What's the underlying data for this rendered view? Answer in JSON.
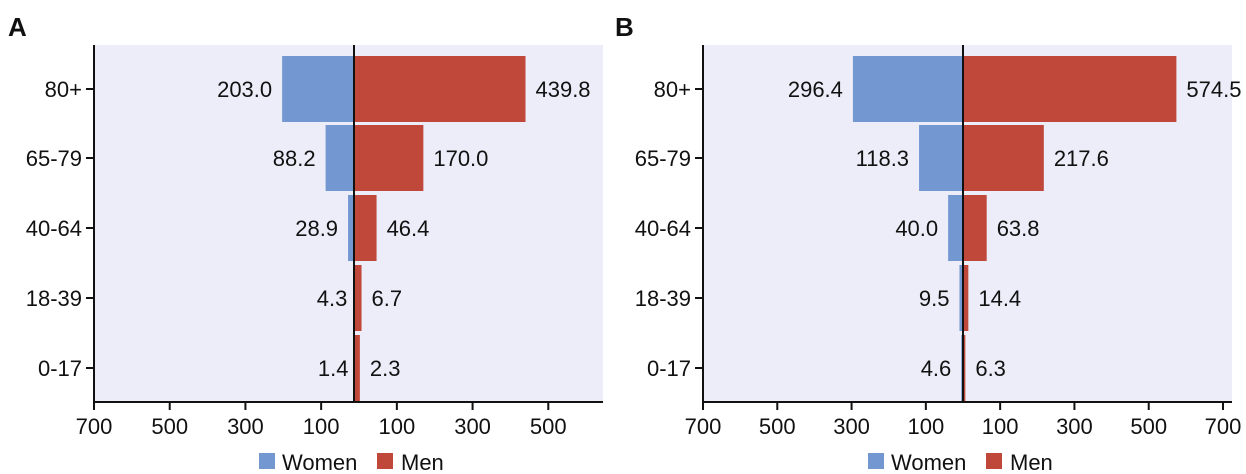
{
  "colors": {
    "women": "#7297d1",
    "men": "#c0483a",
    "panel_bg": "#ecedf8",
    "axis": "#111111"
  },
  "legend": {
    "women_label": "Women",
    "men_label": "Men"
  },
  "chart_data": [
    {
      "type": "bar",
      "panel": "A",
      "orientation": "horizontal-population-pyramid",
      "categories": [
        "80+",
        "65-79",
        "40-64",
        "18-39",
        "0-17"
      ],
      "series": [
        {
          "name": "Women",
          "values": [
            203.0,
            88.2,
            28.9,
            4.3,
            1.4
          ],
          "labels": [
            "203.0",
            "88.2",
            "28.9",
            "4.3",
            "1.4"
          ]
        },
        {
          "name": "Men",
          "values": [
            439.8,
            170.0,
            46.4,
            6.7,
            2.3
          ],
          "labels": [
            "439.8",
            "170.0",
            "46.4",
            "6.7",
            "2.3"
          ]
        }
      ],
      "xlim": [
        -700,
        700
      ],
      "ticks": [
        "700",
        "500",
        "300",
        "100",
        "100",
        "300",
        "500"
      ],
      "tick_values": [
        -700,
        -500,
        -300,
        -100,
        100,
        300,
        500
      ]
    },
    {
      "type": "bar",
      "panel": "B",
      "orientation": "horizontal-population-pyramid",
      "categories": [
        "80+",
        "65-79",
        "40-64",
        "18-39",
        "0-17"
      ],
      "series": [
        {
          "name": "Women",
          "values": [
            296.4,
            118.3,
            40.0,
            9.5,
            4.6
          ],
          "labels": [
            "296.4",
            "118.3",
            "40.0",
            "9.5",
            "4.6"
          ]
        },
        {
          "name": "Men",
          "values": [
            574.5,
            217.6,
            63.8,
            14.4,
            6.3
          ],
          "labels": [
            "574.5",
            "217.6",
            "63.8",
            "14.4",
            "6.3"
          ]
        }
      ],
      "xlim": [
        -700,
        700
      ],
      "ticks": [
        "700",
        "500",
        "300",
        "100",
        "100",
        "300",
        "500",
        "700"
      ],
      "tick_values": [
        -700,
        -500,
        -300,
        -100,
        100,
        300,
        500,
        700
      ]
    }
  ]
}
